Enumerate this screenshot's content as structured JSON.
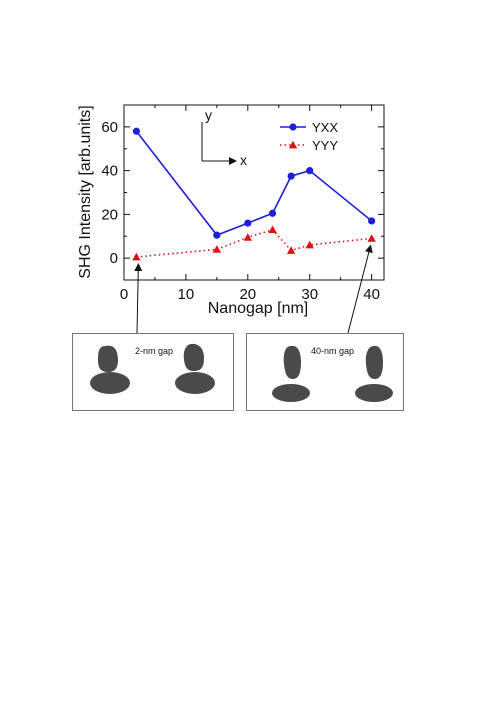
{
  "chart_data": {
    "type": "line",
    "xlabel": "Nanogap [nm]",
    "ylabel": "SHG Intensity [arb.units]",
    "xlim": [
      0,
      42
    ],
    "ylim": [
      -10,
      70
    ],
    "x_ticks": [
      0,
      10,
      20,
      30,
      40
    ],
    "y_ticks": [
      0,
      20,
      40,
      60
    ],
    "grid": false,
    "legend_position": "top-right",
    "series": [
      {
        "name": "YXX",
        "color": "#1f1fd6",
        "line_style": "solid",
        "marker": "circle",
        "x": [
          2,
          15,
          20,
          24,
          27,
          30,
          40
        ],
        "y": [
          58,
          10.5,
          16,
          20.5,
          37.5,
          40,
          17
        ]
      },
      {
        "name": "YYY",
        "color": "#e01010",
        "line_style": "dotted",
        "marker": "triangle",
        "x": [
          2,
          15,
          20,
          24,
          27,
          30,
          40
        ],
        "y": [
          0.5,
          4,
          9.5,
          13,
          3.5,
          6,
          9
        ]
      }
    ],
    "annotations": {
      "axis_y": "y",
      "axis_x": "x"
    }
  },
  "insets": [
    {
      "label": "2-nm gap",
      "points_to_x": 2,
      "points_to_y": 0.5
    },
    {
      "label": "40-nm gap",
      "points_to_x": 40,
      "points_to_y": 9
    }
  ]
}
